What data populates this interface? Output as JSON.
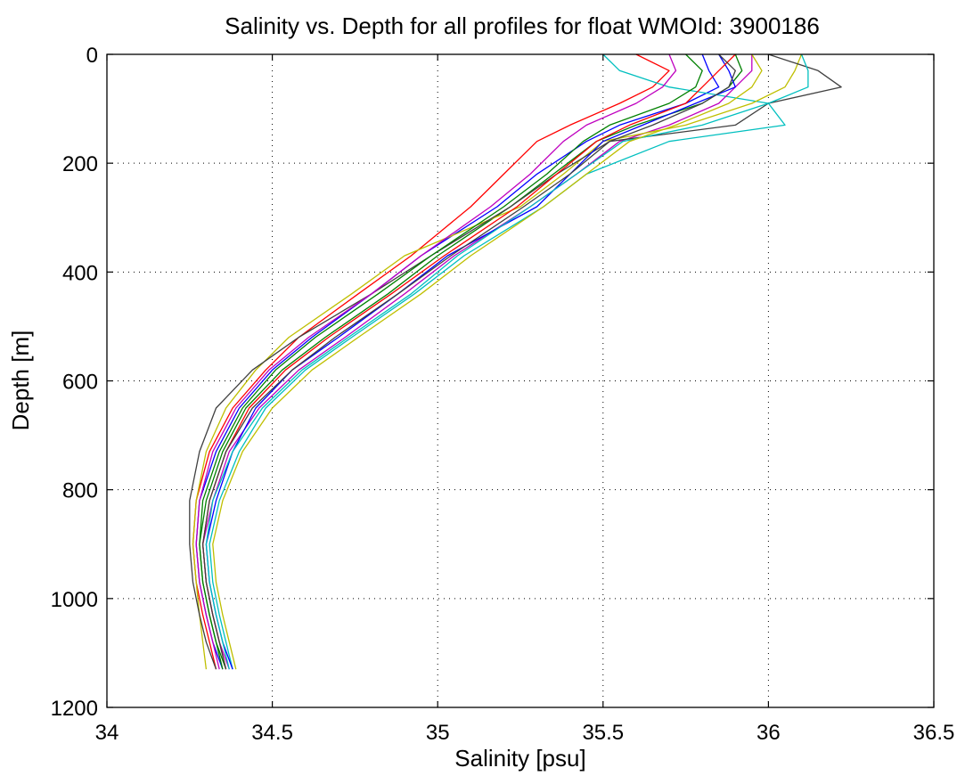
{
  "chart_data": {
    "type": "line",
    "title": "Salinity vs. Depth for all profiles for float WMOId: 3900186",
    "xlabel": "Salinity [psu]",
    "ylabel": "Depth [m]",
    "xlim": [
      34,
      36.5
    ],
    "ylim": [
      0,
      1200
    ],
    "y_reversed": true,
    "grid": true,
    "x_ticks": [
      "34",
      "34.5",
      "35",
      "35.5",
      "36",
      "36.5"
    ],
    "y_ticks": [
      "0",
      "200",
      "400",
      "600",
      "800",
      "1000",
      "1200"
    ],
    "colors": [
      "#0000ff",
      "#008000",
      "#ff0000",
      "#00bfbf",
      "#bf00bf",
      "#bfbf00",
      "#404040"
    ],
    "series": [
      {
        "x": [
          35.8,
          35.82,
          35.85,
          35.75,
          35.55,
          35.45,
          35.3,
          35.18,
          34.95,
          34.8,
          34.62,
          34.5,
          34.4,
          34.33,
          34.28,
          34.27,
          34.28,
          34.3,
          34.32,
          34.35
        ],
        "y": [
          0,
          30,
          60,
          90,
          130,
          160,
          220,
          280,
          370,
          440,
          520,
          580,
          650,
          730,
          820,
          900,
          970,
          1030,
          1080,
          1130
        ]
      },
      {
        "x": [
          35.9,
          35.92,
          35.88,
          35.8,
          35.6,
          35.48,
          35.35,
          35.22,
          35.0,
          34.85,
          34.66,
          34.53,
          34.42,
          34.35,
          34.3,
          34.28,
          34.29,
          34.31,
          34.33,
          34.36
        ],
        "y": [
          0,
          30,
          60,
          90,
          130,
          160,
          220,
          280,
          370,
          440,
          520,
          580,
          650,
          730,
          820,
          900,
          970,
          1030,
          1080,
          1130
        ]
      },
      {
        "x": [
          35.6,
          35.7,
          35.65,
          35.55,
          35.4,
          35.3,
          35.2,
          35.1,
          34.92,
          34.76,
          34.58,
          34.48,
          34.38,
          34.31,
          34.27,
          34.26,
          34.27,
          34.29,
          34.31,
          34.33
        ],
        "y": [
          0,
          30,
          60,
          90,
          130,
          160,
          220,
          280,
          370,
          440,
          520,
          580,
          650,
          730,
          820,
          900,
          970,
          1030,
          1080,
          1130
        ]
      },
      {
        "x": [
          35.5,
          35.55,
          35.7,
          36.0,
          36.05,
          35.7,
          35.45,
          35.32,
          35.08,
          34.93,
          34.74,
          34.6,
          34.48,
          34.4,
          34.34,
          34.31,
          34.32,
          34.34,
          34.36,
          34.38
        ],
        "y": [
          0,
          30,
          60,
          90,
          130,
          160,
          220,
          280,
          370,
          440,
          520,
          580,
          650,
          730,
          820,
          900,
          970,
          1030,
          1080,
          1130
        ]
      },
      {
        "x": [
          35.95,
          35.95,
          35.9,
          35.85,
          35.7,
          35.55,
          35.42,
          35.28,
          35.05,
          34.9,
          34.72,
          34.58,
          34.46,
          34.37,
          34.32,
          34.29,
          34.3,
          34.32,
          34.34,
          34.37
        ],
        "y": [
          0,
          30,
          60,
          90,
          130,
          160,
          220,
          280,
          370,
          440,
          520,
          580,
          650,
          730,
          820,
          900,
          970,
          1030,
          1080,
          1130
        ]
      },
      {
        "x": [
          36.1,
          36.08,
          36.05,
          35.95,
          35.75,
          35.5,
          35.38,
          35.25,
          34.9,
          34.74,
          34.55,
          34.45,
          34.36,
          34.3,
          34.27,
          34.26,
          34.27,
          34.28,
          34.29,
          34.3
        ],
        "y": [
          0,
          30,
          60,
          90,
          130,
          160,
          220,
          280,
          370,
          440,
          520,
          580,
          650,
          730,
          820,
          900,
          970,
          1030,
          1080,
          1130
        ]
      },
      {
        "x": [
          36.0,
          36.15,
          36.22,
          36.0,
          35.9,
          35.52,
          35.36,
          35.22,
          34.98,
          34.8,
          34.58,
          34.44,
          34.33,
          34.28,
          34.25,
          34.25,
          34.26,
          34.28,
          34.3,
          34.33
        ],
        "y": [
          0,
          30,
          60,
          90,
          130,
          160,
          220,
          280,
          370,
          440,
          520,
          580,
          650,
          730,
          820,
          900,
          970,
          1030,
          1080,
          1130
        ]
      },
      {
        "x": [
          35.85,
          35.88,
          35.9,
          35.78,
          35.62,
          35.5,
          35.4,
          35.3,
          35.03,
          34.88,
          34.7,
          34.56,
          34.45,
          34.38,
          34.33,
          34.3,
          34.31,
          34.33,
          34.35,
          34.38
        ],
        "y": [
          0,
          30,
          60,
          90,
          130,
          160,
          220,
          280,
          370,
          440,
          520,
          580,
          650,
          730,
          820,
          900,
          970,
          1030,
          1080,
          1130
        ]
      },
      {
        "x": [
          35.75,
          35.8,
          35.78,
          35.7,
          35.52,
          35.44,
          35.33,
          35.2,
          34.98,
          34.82,
          34.63,
          34.51,
          34.41,
          34.34,
          34.29,
          34.28,
          34.29,
          34.31,
          34.33,
          34.35
        ],
        "y": [
          0,
          30,
          60,
          90,
          130,
          160,
          220,
          280,
          370,
          440,
          520,
          580,
          650,
          730,
          820,
          900,
          970,
          1030,
          1080,
          1130
        ]
      },
      {
        "x": [
          35.9,
          35.85,
          35.8,
          35.75,
          35.58,
          35.48,
          35.36,
          35.24,
          35.02,
          34.86,
          34.67,
          34.54,
          34.43,
          34.36,
          34.31,
          34.29,
          34.3,
          34.32,
          34.34,
          34.36
        ],
        "y": [
          0,
          30,
          60,
          90,
          130,
          160,
          220,
          280,
          370,
          440,
          520,
          580,
          650,
          730,
          820,
          900,
          970,
          1030,
          1080,
          1130
        ]
      },
      {
        "x": [
          36.1,
          36.12,
          36.12,
          36.0,
          35.8,
          35.56,
          35.42,
          35.28,
          35.06,
          34.92,
          34.73,
          34.59,
          34.47,
          34.38,
          34.32,
          34.3,
          34.31,
          34.33,
          34.35,
          34.37
        ],
        "y": [
          0,
          30,
          60,
          90,
          130,
          160,
          220,
          280,
          370,
          440,
          520,
          580,
          650,
          730,
          820,
          900,
          970,
          1030,
          1080,
          1130
        ]
      },
      {
        "x": [
          35.7,
          35.72,
          35.68,
          35.6,
          35.45,
          35.38,
          35.28,
          35.16,
          34.95,
          34.8,
          34.61,
          34.49,
          34.39,
          34.32,
          34.28,
          34.27,
          34.28,
          34.3,
          34.32,
          34.34
        ],
        "y": [
          0,
          30,
          60,
          90,
          130,
          160,
          220,
          280,
          370,
          440,
          520,
          580,
          650,
          730,
          820,
          900,
          970,
          1030,
          1080,
          1130
        ]
      },
      {
        "x": [
          35.95,
          35.98,
          35.95,
          35.88,
          35.72,
          35.58,
          35.45,
          35.32,
          35.1,
          34.95,
          34.76,
          34.62,
          34.5,
          34.41,
          34.35,
          34.32,
          34.33,
          34.35,
          34.37,
          34.39
        ],
        "y": [
          0,
          30,
          60,
          90,
          130,
          160,
          220,
          280,
          370,
          440,
          520,
          580,
          650,
          730,
          820,
          900,
          970,
          1030,
          1080,
          1130
        ]
      },
      {
        "x": [
          35.85,
          35.9,
          35.88,
          35.8,
          35.65,
          35.52,
          35.4,
          35.26,
          35.04,
          34.88,
          34.69,
          34.56,
          34.44,
          34.36,
          34.31,
          34.29,
          34.3,
          34.32,
          34.34,
          34.36
        ],
        "y": [
          0,
          30,
          60,
          90,
          130,
          160,
          220,
          280,
          370,
          440,
          520,
          580,
          650,
          730,
          820,
          900,
          970,
          1030,
          1080,
          1130
        ]
      }
    ]
  }
}
